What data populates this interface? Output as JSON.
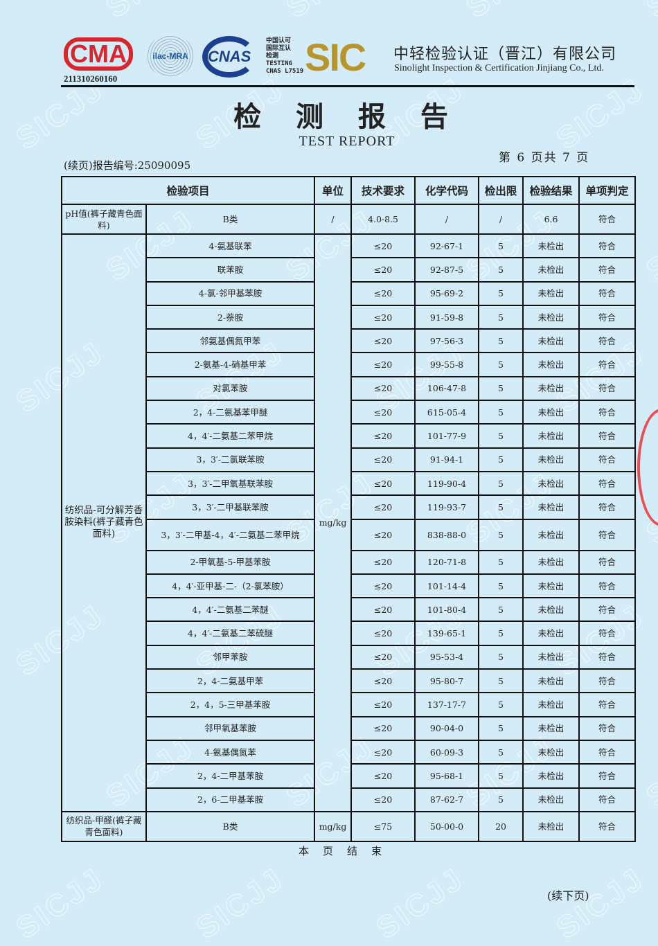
{
  "header": {
    "cma_logo": "CMA",
    "cma_number": "211310260160",
    "ilac_logo": "ilac-MRA",
    "cnas_logo": "CNAS",
    "cnas_text": [
      "中国认可",
      "国际互认",
      "检测",
      "TESTING",
      "CNAS L7519"
    ],
    "sic_logo": "SIC",
    "company_cn": "中轻检验认证（晋江）有限公司",
    "company_en": "Sinolight Inspection & Certification Jinjiang Co., Ltd."
  },
  "title": "检 测 报 告",
  "subtitle": "TEST REPORT",
  "page_info": "第 6 页共 7 页",
  "report_no": "(续页)报告编号:25090095",
  "watermark": "SICJJ",
  "table": {
    "headers": [
      "检验项目",
      "单位",
      "技术要求",
      "化学代码",
      "检出限",
      "检验结果",
      "单项判定"
    ],
    "ph_row": {
      "category": "pH值(裤子藏青色面料)",
      "item": "B类",
      "unit": "/",
      "requirement": "4.0-8.5",
      "code": "/",
      "limit": "/",
      "result": "6.6",
      "verdict": "符合"
    },
    "amine_group": {
      "category": "纺织品-可分解芳香胺染料(裤子藏青色面料)",
      "unit": "mg/kg",
      "rows": [
        [
          "4-氨基联苯",
          "≤20",
          "92-67-1",
          "5",
          "未检出",
          "符合"
        ],
        [
          "联苯胺",
          "≤20",
          "92-87-5",
          "5",
          "未检出",
          "符合"
        ],
        [
          "4-氯-邻甲基苯胺",
          "≤20",
          "95-69-2",
          "5",
          "未检出",
          "符合"
        ],
        [
          "2-萘胺",
          "≤20",
          "91-59-8",
          "5",
          "未检出",
          "符合"
        ],
        [
          "邻氨基偶氮甲苯",
          "≤20",
          "97-56-3",
          "5",
          "未检出",
          "符合"
        ],
        [
          "2-氨基-4-硝基甲苯",
          "≤20",
          "99-55-8",
          "5",
          "未检出",
          "符合"
        ],
        [
          "对氯苯胺",
          "≤20",
          "106-47-8",
          "5",
          "未检出",
          "符合"
        ],
        [
          "2，4-二氨基苯甲醚",
          "≤20",
          "615-05-4",
          "5",
          "未检出",
          "符合"
        ],
        [
          "4，4′-二氨基二苯甲烷",
          "≤20",
          "101-77-9",
          "5",
          "未检出",
          "符合"
        ],
        [
          "3，3′-二氯联苯胺",
          "≤20",
          "91-94-1",
          "5",
          "未检出",
          "符合"
        ],
        [
          "3，3′-二甲氧基联苯胺",
          "≤20",
          "119-90-4",
          "5",
          "未检出",
          "符合"
        ],
        [
          "3，3′-二甲基联苯胺",
          "≤20",
          "119-93-7",
          "5",
          "未检出",
          "符合"
        ],
        [
          "3，3′-二甲基-4，4′-二氨基二苯甲烷",
          "≤20",
          "838-88-0",
          "5",
          "未检出",
          "符合"
        ],
        [
          "2-甲氧基-5-甲基苯胺",
          "≤20",
          "120-71-8",
          "5",
          "未检出",
          "符合"
        ],
        [
          "4，4′-亚甲基-二-（2-氯苯胺）",
          "≤20",
          "101-14-4",
          "5",
          "未检出",
          "符合"
        ],
        [
          "4，4′-二氨基二苯醚",
          "≤20",
          "101-80-4",
          "5",
          "未检出",
          "符合"
        ],
        [
          "4，4′-二氨基二苯硫醚",
          "≤20",
          "139-65-1",
          "5",
          "未检出",
          "符合"
        ],
        [
          "邻甲苯胺",
          "≤20",
          "95-53-4",
          "5",
          "未检出",
          "符合"
        ],
        [
          "2，4-二氨基甲苯",
          "≤20",
          "95-80-7",
          "5",
          "未检出",
          "符合"
        ],
        [
          "2，4，5-三甲基苯胺",
          "≤20",
          "137-17-7",
          "5",
          "未检出",
          "符合"
        ],
        [
          "邻甲氧基苯胺",
          "≤20",
          "90-04-0",
          "5",
          "未检出",
          "符合"
        ],
        [
          "4-氨基偶氮苯",
          "≤20",
          "60-09-3",
          "5",
          "未检出",
          "符合"
        ],
        [
          "2，4-二甲基苯胺",
          "≤20",
          "95-68-1",
          "5",
          "未检出",
          "符合"
        ],
        [
          "2，6-二甲基苯胺",
          "≤20",
          "87-62-7",
          "5",
          "未检出",
          "符合"
        ]
      ]
    },
    "formaldehyde_row": {
      "category": "纺织品-甲醛(裤子藏青色面料)",
      "item": "B类",
      "unit": "mg/kg",
      "requirement": "≤75",
      "code": "50-00-0",
      "limit": "20",
      "result": "未检出",
      "verdict": "符合"
    }
  },
  "footer": {
    "end": "本页结束",
    "continued": "(续下页)"
  }
}
